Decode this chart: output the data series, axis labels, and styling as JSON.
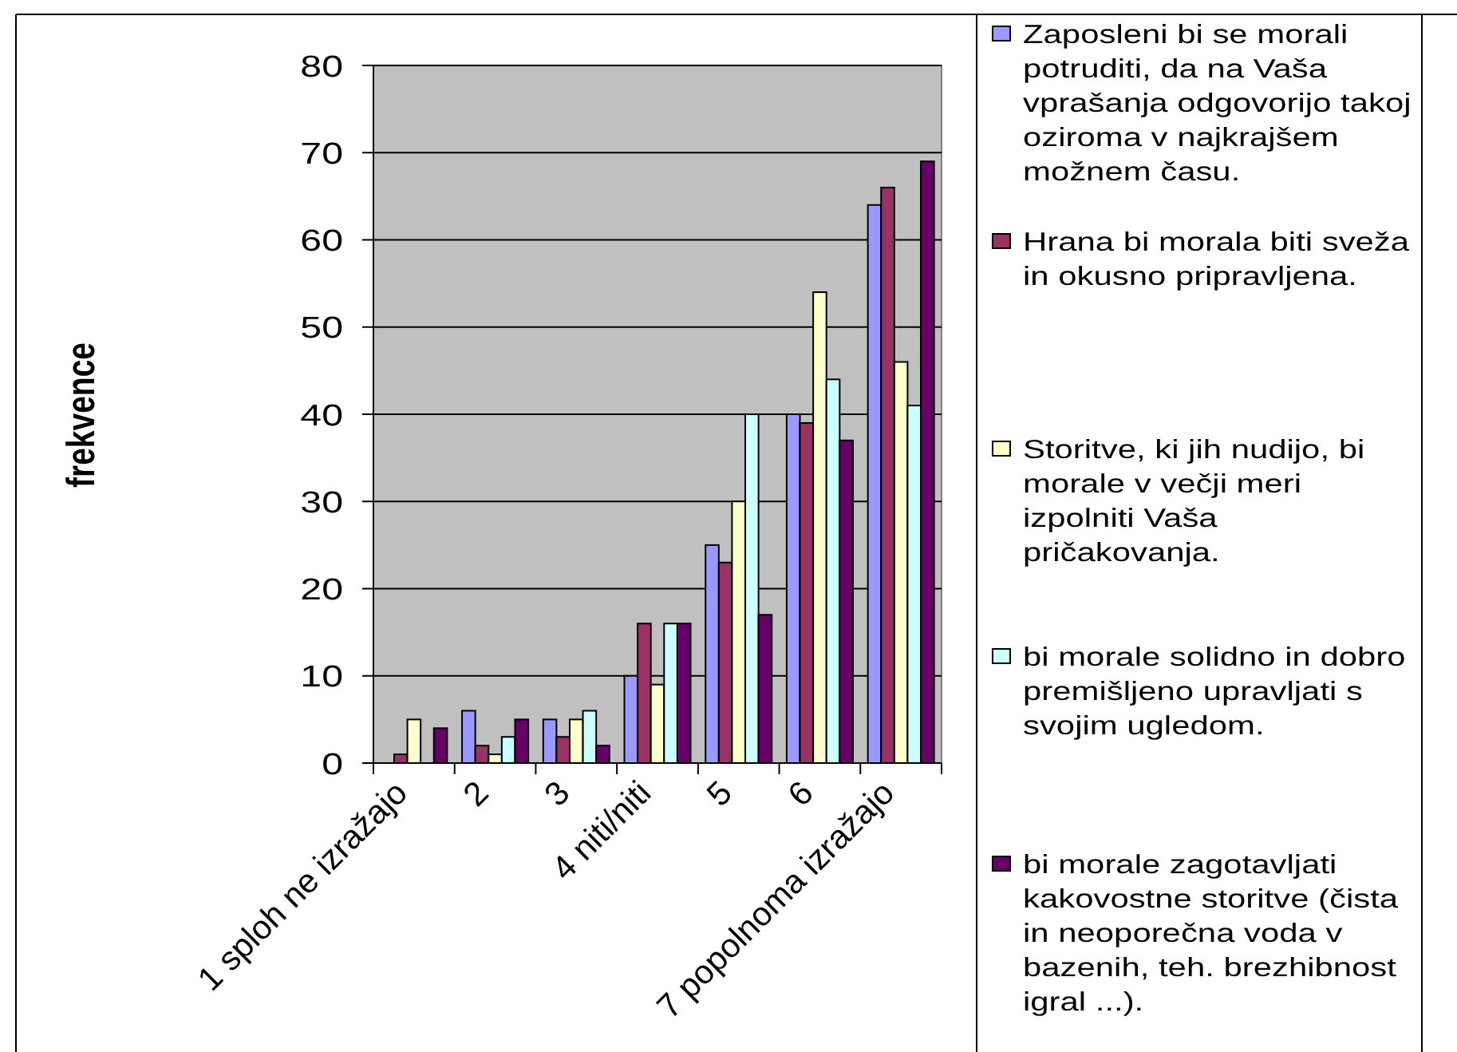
{
  "chart_data": {
    "type": "bar",
    "ylabel": "frekvence",
    "categories": [
      "1 sploh ne izražajo",
      "2",
      "3",
      "4 niti/niti",
      "5",
      "6",
      "7 popolnoma izražajo"
    ],
    "series": [
      {
        "name": "Zaposleni bi se morali potruditi, da na Vaša vprašanja odgovorijo takoj oziroma v najkrajšem možnem času.",
        "color": "#9999ff",
        "values": [
          0,
          6,
          5,
          10,
          25,
          40,
          64
        ]
      },
      {
        "name": "Hrana bi morala biti sveža in okusno pripravljena.",
        "color": "#993366",
        "values": [
          1,
          2,
          3,
          16,
          23,
          39,
          66
        ]
      },
      {
        "name": "Storitve, ki jih nudijo, bi morale v večji meri izpolniti Vaša pričakovanja.",
        "color": "#ffffcc",
        "values": [
          5,
          1,
          5,
          9,
          30,
          54,
          46
        ]
      },
      {
        "name": "bi morale solidno in dobro premišljeno upravljati s svojim ugledom.",
        "color": "#ccffff",
        "values": [
          0,
          3,
          6,
          16,
          40,
          44,
          41
        ]
      },
      {
        "name": "bi morale zagotavljati kakovostne storitve (čista in neoporečna voda v bazenih, teh. brezhibnost igral ...).",
        "color": "#660066",
        "values": [
          4,
          5,
          2,
          16,
          17,
          37,
          69
        ]
      }
    ],
    "ylim": [
      0,
      80
    ],
    "yticks": [
      0,
      10,
      20,
      30,
      40,
      50,
      60,
      70,
      80
    ],
    "grid": "y",
    "legend": "right"
  }
}
